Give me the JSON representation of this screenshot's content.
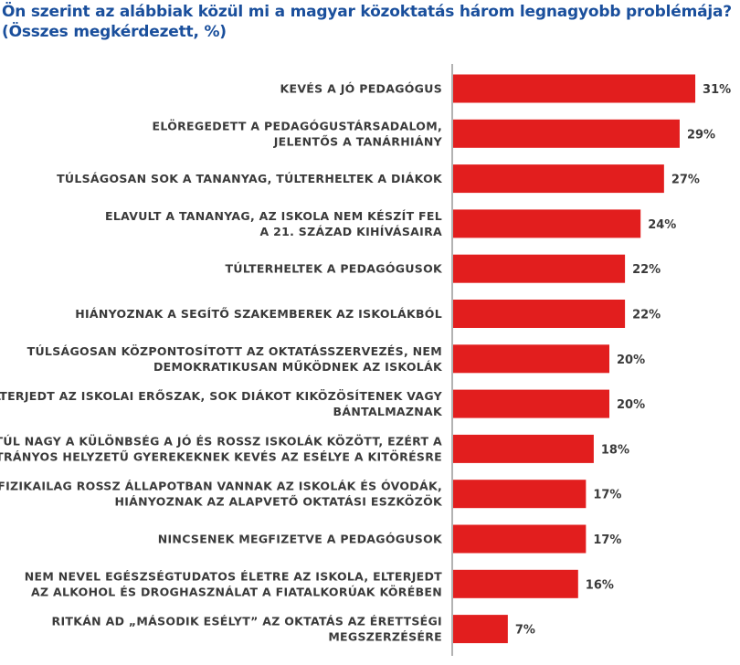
{
  "chart_data": {
    "type": "bar",
    "orientation": "horizontal",
    "title": "Ön szerint az alábbiak közül mi a magyar közoktatás három legnagyobb problémája?",
    "subtitle": "(Összes megkérdezett, %)",
    "bar_color": "#e21e1e",
    "axis_color": "#666666",
    "grid": false,
    "value_suffix": "%",
    "categories": [
      [
        "KEVÉS A JÓ PEDAGÓGUS"
      ],
      [
        "ELÖREGEDETT A PEDAGÓGUSTÁRSADALOM,",
        "JELENTŐS A TANÁRHIÁNY"
      ],
      [
        "TÚLSÁGOSAN SOK A TANANYAG, TÚLTERHELTEK A DIÁKOK"
      ],
      [
        "ELAVULT A TANANYAG, AZ ISKOLA NEM KÉSZÍT FEL",
        "A 21. SZÁZAD KIHÍVÁSAIRA"
      ],
      [
        "TÚLTERHELTEK A PEDAGÓGUSOK"
      ],
      [
        "HIÁNYOZNAK A SEGÍTŐ SZAKEMBEREK AZ ISKOLÁKBÓL"
      ],
      [
        "TÚLSÁGOSAN KÖZPONTOSÍTOTT AZ OKTATÁSSZERVEZÉS, NEM",
        "DEMOKRATIKUSAN MŰKÖDNEK AZ ISKOLÁK"
      ],
      [
        "ELTERJEDT AZ ISKOLAI ERŐSZAK, SOK DIÁKOT KIKÖZÖSÍTENEK VAGY",
        "BÁNTALMAZNAK"
      ],
      [
        "TÚL NAGY A KÜLÖNBSÉG A JÓ ÉS ROSSZ ISKOLÁK KÖZÖTT, EZÉRT A",
        "HÁTRÁNYOS HELYZETŰ GYEREKEKNEK KEVÉS AZ ESÉLYE A KITÖRÉSRE"
      ],
      [
        "FIZIKAILAG ROSSZ ÁLLAPOTBAN VANNAK AZ ISKOLÁK ÉS ÓVODÁK,",
        "HIÁNYOZNAK AZ ALAPVETŐ OKTATÁSI ESZKÖZÖK"
      ],
      [
        "NINCSENEK MEGFIZETVE A PEDAGÓGUSOK"
      ],
      [
        "NEM NEVEL EGÉSZSÉGTUDATOS ÉLETRE AZ ISKOLA, ELTERJEDT",
        "AZ ALKOHOL ÉS DROGHASZNÁLAT A FIATALKORÚAK KÖRÉBEN"
      ],
      [
        "RITKÁN AD „MÁSODIK ESÉLYT” AZ OKTATÁS AZ ÉRETTSÉGI",
        "MEGSZERZÉSÉRE"
      ]
    ],
    "values": [
      31,
      29,
      27,
      24,
      22,
      22,
      20,
      20,
      18,
      17,
      17,
      16,
      7
    ]
  }
}
